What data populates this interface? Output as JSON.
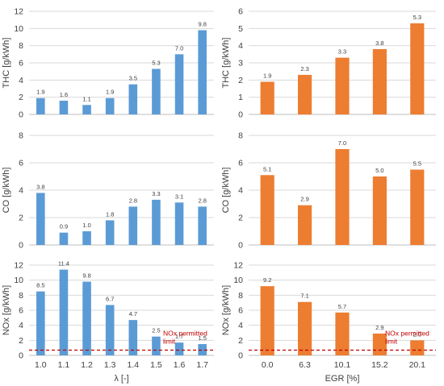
{
  "chart_data": [
    {
      "type": "bar",
      "id": "thc-lambda",
      "categories": [
        "1.0",
        "1.1",
        "1.2",
        "1.3",
        "1.4",
        "1.5",
        "1.6",
        "1.7"
      ],
      "values": [
        1.9,
        1.6,
        1.1,
        1.9,
        3.5,
        5.3,
        7.0,
        9.8
      ],
      "data_labels": [
        "1.9",
        "1.6",
        "1.1",
        "1.9",
        "3.5",
        "5.3",
        "7.0",
        "9.8"
      ],
      "ylabel": "THC [g/kWh]",
      "ylim": [
        0,
        12
      ],
      "yticks": [
        "0",
        "2",
        "4",
        "6",
        "8",
        "10",
        "12"
      ],
      "xlabel": "",
      "show_categories": false,
      "color": "#5b9bd5",
      "grid": true
    },
    {
      "type": "bar",
      "id": "thc-egr",
      "categories": [
        "0.0",
        "6.3",
        "10.1",
        "15.2",
        "20.1"
      ],
      "values": [
        1.9,
        2.3,
        3.3,
        3.8,
        5.3
      ],
      "data_labels": [
        "1.9",
        "2.3",
        "3.3",
        "3.8",
        "5.3"
      ],
      "ylabel": "THC [g/kWh]",
      "ylim": [
        0,
        6
      ],
      "yticks": [
        "0",
        "1",
        "2",
        "3",
        "4",
        "5",
        "6"
      ],
      "xlabel": "",
      "show_categories": false,
      "color": "#ed7d31",
      "grid": true
    },
    {
      "type": "bar",
      "id": "co-lambda",
      "categories": [
        "1.0",
        "1.1",
        "1.2",
        "1.3",
        "1.4",
        "1.5",
        "1.6",
        "1.7"
      ],
      "values": [
        3.8,
        0.9,
        1.0,
        1.8,
        2.8,
        3.3,
        3.1,
        2.8
      ],
      "data_labels": [
        "3.8",
        "0.9",
        "1.0",
        "1.8",
        "2.8",
        "3.3",
        "3.1",
        "2.8"
      ],
      "ylabel": "CO [g/kWh]",
      "ylim": [
        0,
        8
      ],
      "yticks": [
        "0",
        "2",
        "4",
        "6",
        "8"
      ],
      "xlabel": "",
      "show_categories": false,
      "color": "#5b9bd5",
      "grid": true
    },
    {
      "type": "bar",
      "id": "co-egr",
      "categories": [
        "0.0",
        "6.3",
        "10.1",
        "15.2",
        "20.1"
      ],
      "values": [
        5.1,
        2.9,
        7.0,
        5.0,
        5.5
      ],
      "data_labels": [
        "5.1",
        "2.9",
        "7.0",
        "5.0",
        "5.5"
      ],
      "ylabel": "CO [g/kWh]",
      "ylim": [
        0,
        8
      ],
      "yticks": [
        "0",
        "2",
        "4",
        "6",
        "8"
      ],
      "xlabel": "",
      "show_categories": false,
      "color": "#ed7d31",
      "grid": true
    },
    {
      "type": "bar",
      "id": "nox-lambda",
      "categories": [
        "1.0",
        "1.1",
        "1.2",
        "1.3",
        "1.4",
        "1.5",
        "1.6",
        "1.7"
      ],
      "values": [
        8.5,
        11.4,
        9.8,
        6.7,
        4.7,
        2.5,
        1.7,
        1.5
      ],
      "data_labels": [
        "8.5",
        "11.4",
        "9.8",
        "6.7",
        "4.7",
        "2.5",
        "1.7",
        "1.5"
      ],
      "ylabel": "NOx [g/kWh]",
      "ylim": [
        0,
        12
      ],
      "yticks": [
        "0",
        "2",
        "4",
        "6",
        "8",
        "10",
        "12"
      ],
      "xlabel": "λ [-]",
      "show_categories": true,
      "color": "#5b9bd5",
      "grid": true,
      "limit_line": {
        "value": 0.7,
        "label": "NOx permitted limit",
        "color": "#c00000"
      }
    },
    {
      "type": "bar",
      "id": "nox-egr",
      "categories": [
        "0.0",
        "6.3",
        "10.1",
        "15.2",
        "20.1"
      ],
      "values": [
        9.2,
        7.1,
        5.7,
        2.9,
        2.0
      ],
      "data_labels": [
        "9.2",
        "7.1",
        "5.7",
        "2.9",
        "2.0"
      ],
      "ylabel": "NOx [g/kWh]",
      "ylim": [
        0,
        12
      ],
      "yticks": [
        "0",
        "2",
        "4",
        "6",
        "8",
        "10",
        "12"
      ],
      "xlabel": "EGR [%]",
      "show_categories": true,
      "color": "#ed7d31",
      "grid": true,
      "limit_line": {
        "value": 0.7,
        "label": "NOx permitted limit",
        "color": "#c00000"
      }
    }
  ]
}
